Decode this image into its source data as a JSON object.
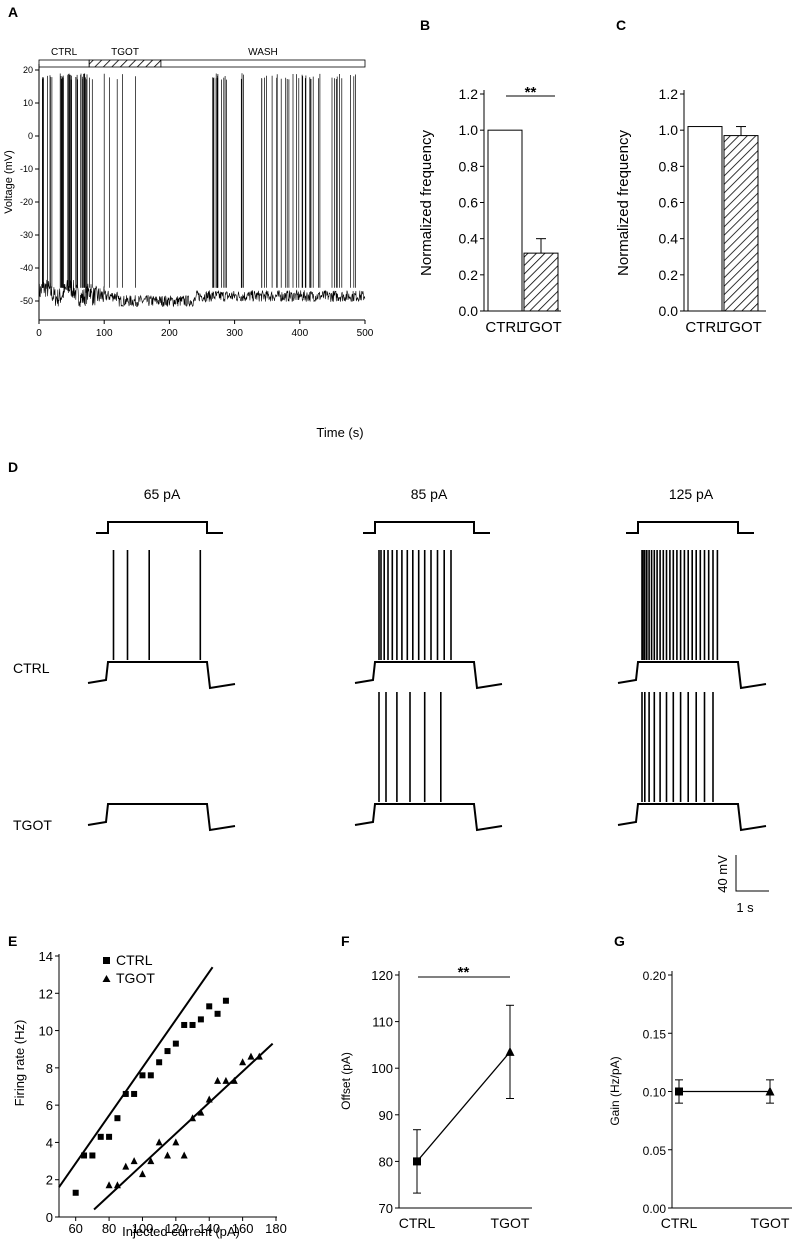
{
  "panels": {
    "A": "A",
    "B": "B",
    "C": "C",
    "D": "D",
    "E": "E",
    "F": "F",
    "G": "G"
  },
  "chart_data": [
    {
      "panel": "A",
      "type": "line",
      "ylabel": "Voltage (mV)",
      "xlabel": "Time (s)",
      "xlim": [
        0,
        500
      ],
      "ylim": [
        -55,
        22
      ],
      "x_ticks": [
        "0",
        "100",
        "200",
        "300",
        "400",
        "500"
      ],
      "y_ticks": [
        "20",
        "10",
        "0",
        "-10",
        "-20",
        "-30",
        "-40",
        "-50"
      ],
      "condition_bars": [
        {
          "label": "CTRL",
          "start": 0,
          "end": 77,
          "pattern": "open"
        },
        {
          "label": "TGOT",
          "start": 77,
          "end": 187,
          "pattern": "hatched"
        },
        {
          "label": "WASH",
          "start": 187,
          "end": 500,
          "pattern": "open"
        }
      ],
      "baseline_mV": -48,
      "spike_peak_mV": 19
    },
    {
      "panel": "B",
      "type": "bar",
      "categories": [
        "CTRL",
        "TGOT"
      ],
      "values": [
        1.0,
        0.32
      ],
      "errors": [
        0,
        0.08
      ],
      "ylabel": "Normalized frequency",
      "ylim": [
        0,
        1.2
      ],
      "y_ticks": [
        "0.0",
        "0.2",
        "0.4",
        "0.6",
        "0.8",
        "1.0",
        "1.2"
      ],
      "significance": "**",
      "patterns": [
        "open",
        "hatched"
      ]
    },
    {
      "panel": "C",
      "type": "bar",
      "categories": [
        "CTRL",
        "TGOT"
      ],
      "values": [
        1.02,
        0.97
      ],
      "errors": [
        0,
        0.05
      ],
      "ylabel": "Normalized frequency",
      "ylim": [
        0,
        1.2
      ],
      "y_ticks": [
        "0.0",
        "0.2",
        "0.4",
        "0.6",
        "0.8",
        "1.0",
        "1.2"
      ],
      "patterns": [
        "open",
        "hatched"
      ]
    },
    {
      "panel": "D",
      "type": "line",
      "currents": [
        "65 pA",
        "85 pA",
        "125 pA"
      ],
      "rows": [
        "CTRL",
        "TGOT"
      ],
      "spike_counts": {
        "CTRL": [
          4,
          15,
          24
        ],
        "TGOT": [
          0,
          6,
          12
        ]
      },
      "scale_bar": {
        "y": "40 mV",
        "x": "1 s"
      }
    },
    {
      "panel": "E",
      "type": "scatter",
      "xlabel": "Injected current (pA)",
      "ylabel": "Firing rate (Hz)",
      "xlim": [
        50,
        180
      ],
      "ylim": [
        0,
        14
      ],
      "x_ticks": [
        "60",
        "80",
        "100",
        "120",
        "140",
        "160",
        "180"
      ],
      "y_ticks": [
        "0",
        "2",
        "4",
        "6",
        "8",
        "10",
        "12",
        "14"
      ],
      "series": [
        {
          "name": "CTRL",
          "marker": "square",
          "x": [
            60,
            65,
            70,
            75,
            80,
            85,
            90,
            95,
            100,
            105,
            110,
            115,
            120,
            125,
            130,
            135,
            140,
            145,
            150
          ],
          "y": [
            1.3,
            3.3,
            3.3,
            4.3,
            4.3,
            5.3,
            6.6,
            6.6,
            7.6,
            7.6,
            8.3,
            8.9,
            9.3,
            10.3,
            10.3,
            10.6,
            11.3,
            10.9,
            11.6
          ],
          "fit": [
            [
              50,
              1.6
            ],
            [
              142,
              13.4
            ]
          ]
        },
        {
          "name": "TGOT",
          "marker": "triangle",
          "x": [
            80,
            85,
            90,
            95,
            100,
            105,
            110,
            115,
            120,
            125,
            130,
            135,
            140,
            145,
            150,
            155,
            160,
            165,
            170
          ],
          "y": [
            1.7,
            1.7,
            2.7,
            3.0,
            2.3,
            3.0,
            4.0,
            3.3,
            4.0,
            3.3,
            5.3,
            5.6,
            6.3,
            7.3,
            7.3,
            7.3,
            8.3,
            8.6,
            8.6
          ],
          "fit": [
            [
              71,
              0.4
            ],
            [
              178,
              9.3
            ]
          ]
        }
      ]
    },
    {
      "panel": "F",
      "type": "line",
      "categories": [
        "CTRL",
        "TGOT"
      ],
      "values": [
        80,
        103.5
      ],
      "errors": [
        6.8,
        10
      ],
      "ylabel": "Offset (pA)",
      "ylim": [
        70,
        120
      ],
      "y_ticks": [
        "70",
        "80",
        "90",
        "100",
        "110",
        "120"
      ],
      "significance": "**",
      "markers": [
        "square",
        "triangle"
      ]
    },
    {
      "panel": "G",
      "type": "line",
      "categories": [
        "CTRL",
        "TGOT"
      ],
      "values": [
        0.1,
        0.1
      ],
      "errors": [
        0.01,
        0.01
      ],
      "ylabel": "Gain (Hz/pA)",
      "ylim": [
        0,
        0.2
      ],
      "y_ticks": [
        "0.00",
        "0.05",
        "0.10",
        "0.15",
        "0.20"
      ],
      "markers": [
        "square",
        "triangle"
      ]
    }
  ]
}
